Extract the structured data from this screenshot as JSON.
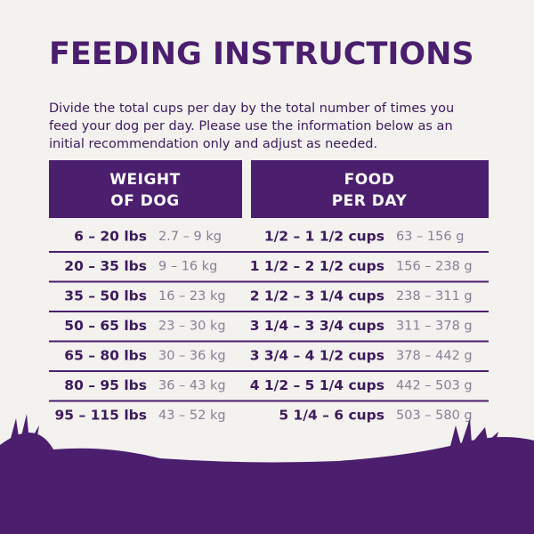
{
  "title": "FEEDING INSTRUCTIONS",
  "intro": [
    "Divide the total cups per day by the total number of times you",
    "feed your dog per day. Please use the information below as an",
    "initial recommendation only and adjust as needed."
  ],
  "table": {
    "headers": [
      [
        "WEIGHT",
        "OF DOG"
      ],
      [
        "FOOD",
        "PER DAY"
      ]
    ],
    "rows": [
      [
        "6 – 20 lbs",
        "2.7 – 9 kg",
        "1/2 – 1 1/2 cups",
        "63 – 156 g"
      ],
      [
        "20 – 35 lbs",
        "9 – 16 kg",
        "1 1/2 – 2 1/2 cups",
        "156 – 238 g"
      ],
      [
        "35 – 50 lbs",
        "16 – 23 kg",
        "2 1/2 – 3 1/4 cups",
        "238 – 311 g"
      ],
      [
        "50 – 65 lbs",
        "23 – 30 kg",
        "3 1/4 – 3 3/4 cups",
        "311 – 378 g"
      ],
      [
        "65 – 80 lbs",
        "30 – 36 kg",
        "3 3/4 – 4 1/2 cups",
        "378 – 442 g"
      ],
      [
        "80 – 95 lbs",
        "36 – 43 kg",
        "4 1/2 – 5 1/4 cups",
        "442 – 503 g"
      ],
      [
        "95 – 115 lbs",
        "43 – 52 kg",
        "5 1/4 – 6 cups",
        "503 – 580 g"
      ]
    ]
  }
}
